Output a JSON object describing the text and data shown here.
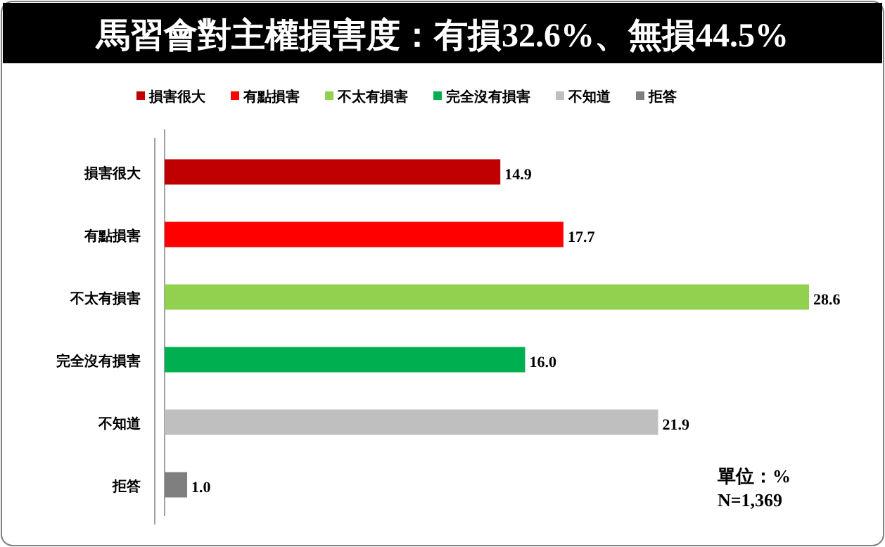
{
  "chart_data": {
    "type": "bar",
    "orientation": "horizontal",
    "title": "馬習會對主權損害度：有損32.6%、無損44.5%",
    "categories": [
      "損害很大",
      "有點損害",
      "不太有損害",
      "完全沒有損害",
      "不知道",
      "拒答"
    ],
    "series": [
      {
        "name": "損害很大",
        "color": "#c00000",
        "values": [
          14.9,
          null,
          null,
          null,
          null,
          null
        ],
        "value_labels": [
          "14.9",
          null,
          null,
          null,
          null,
          null
        ]
      },
      {
        "name": "有點損害",
        "color": "#ff0000",
        "values": [
          null,
          17.7,
          null,
          null,
          null,
          null
        ],
        "value_labels": [
          null,
          "17.7",
          null,
          null,
          null,
          null
        ]
      },
      {
        "name": "不太有損害",
        "color": "#92d050",
        "values": [
          null,
          null,
          28.6,
          null,
          null,
          null
        ],
        "value_labels": [
          null,
          null,
          "28.6",
          null,
          null,
          null
        ]
      },
      {
        "name": "完全沒有損害",
        "color": "#00b050",
        "values": [
          null,
          null,
          null,
          16.0,
          null,
          null
        ],
        "value_labels": [
          null,
          null,
          null,
          "16.0",
          null,
          null
        ]
      },
      {
        "name": "不知道",
        "color": "#bfbfbf",
        "values": [
          null,
          null,
          null,
          null,
          21.9,
          null
        ],
        "value_labels": [
          null,
          null,
          null,
          null,
          "21.9",
          null
        ]
      },
      {
        "name": "拒答",
        "color": "#7f7f7f",
        "values": [
          null,
          null,
          null,
          null,
          null,
          1.0
        ],
        "value_labels": [
          null,
          null,
          null,
          null,
          null,
          "1.0"
        ]
      }
    ],
    "legend": "top",
    "annotations": [
      "單位：%",
      "N=1,369"
    ]
  }
}
